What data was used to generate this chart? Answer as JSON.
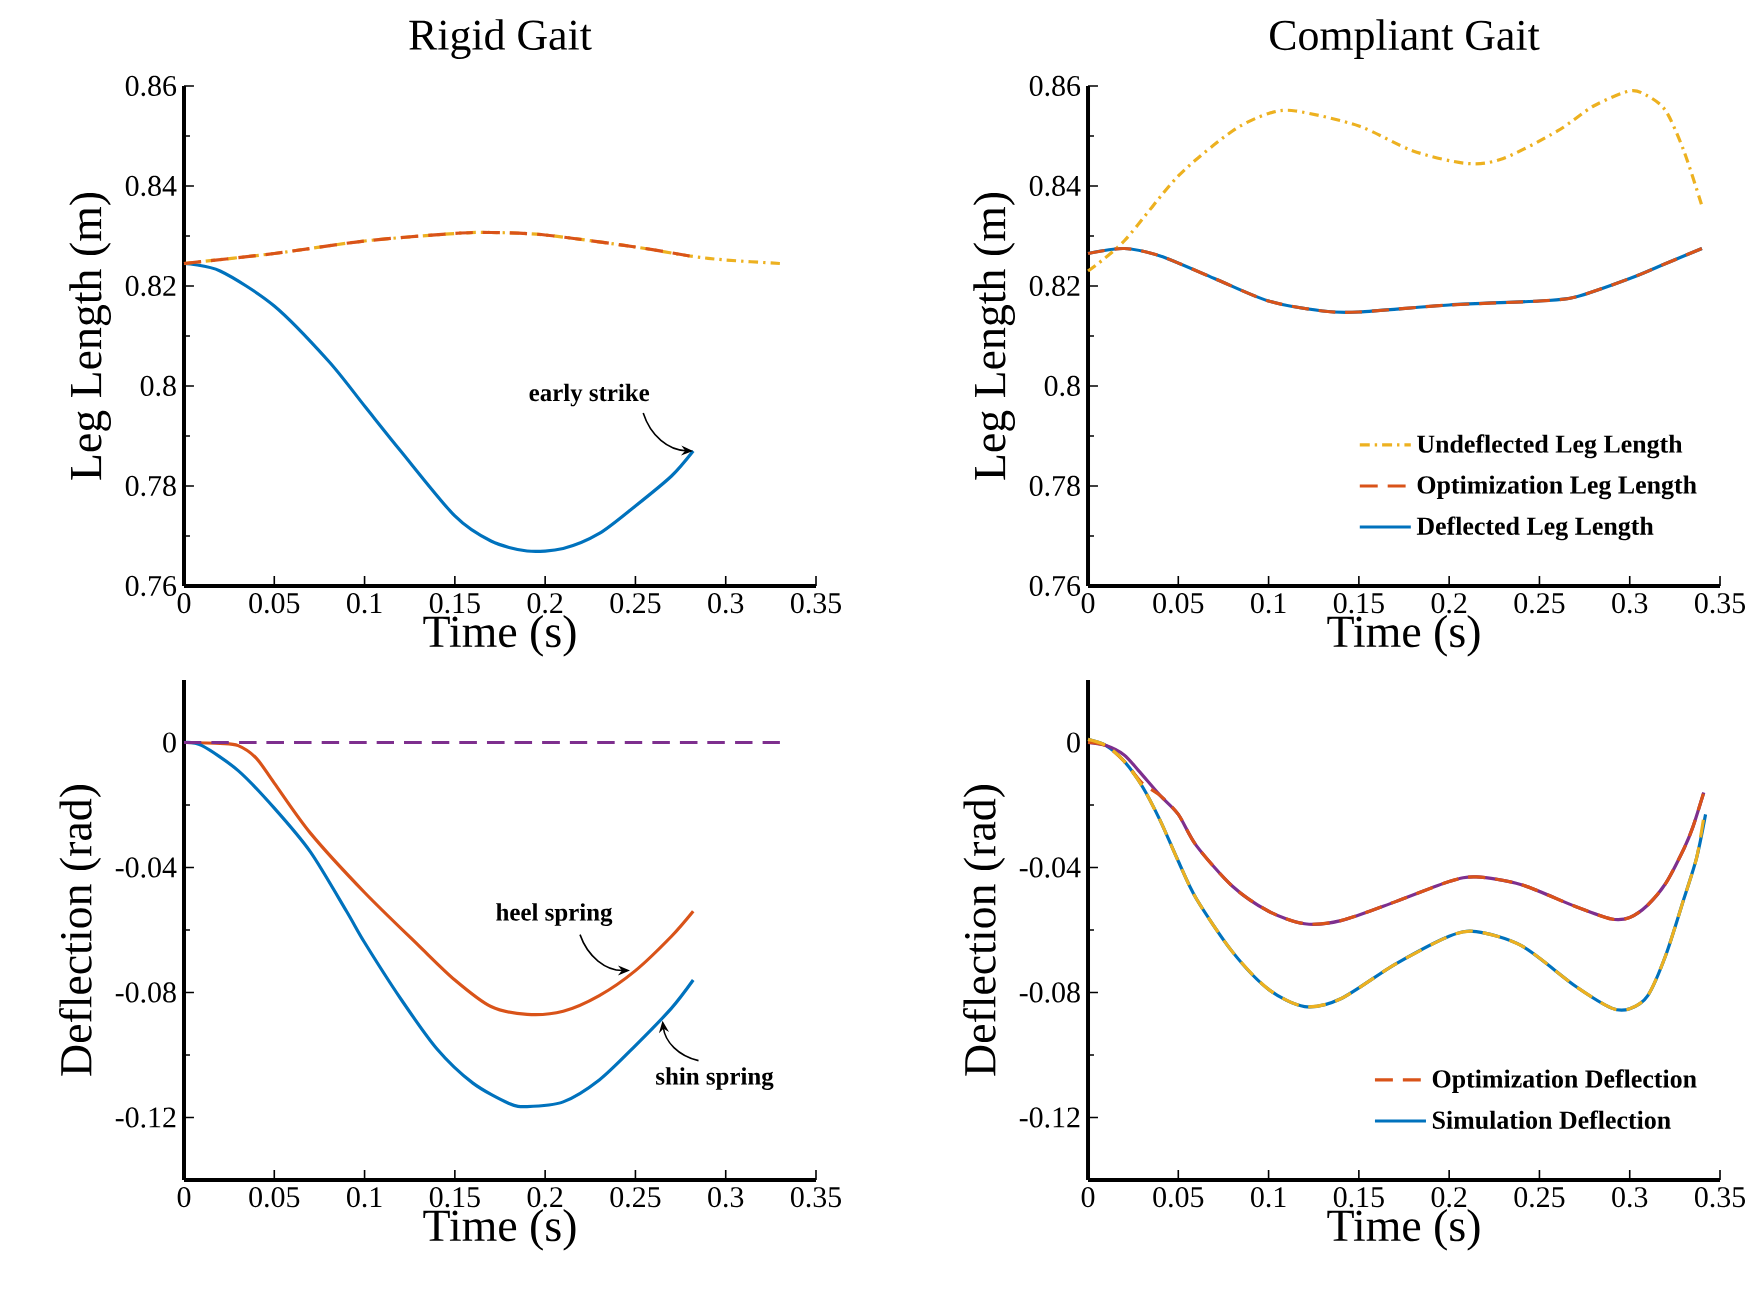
{
  "chart_data": [
    {
      "type": "line",
      "title": "Rigid Gait",
      "xlabel": "Time (s)",
      "ylabel": "Leg Length (m)",
      "xlim": [
        0,
        0.35
      ],
      "ylim": [
        0.76,
        0.86
      ],
      "xticks": [
        0,
        0.05,
        0.1,
        0.15,
        0.2,
        0.25,
        0.3,
        0.35
      ],
      "yticks": [
        0.76,
        0.78,
        0.8,
        0.82,
        0.84,
        0.86
      ],
      "series": [
        {
          "color": "#edb120",
          "line_style": "dashdot",
          "x": [
            0,
            0.05,
            0.1,
            0.15,
            0.17,
            0.2,
            0.25,
            0.28,
            0.3,
            0.33
          ],
          "values": [
            0.8245,
            0.8265,
            0.829,
            0.8305,
            0.8307,
            0.8302,
            0.8278,
            0.826,
            0.8252,
            0.8245
          ]
        },
        {
          "color": "#d95319",
          "line_style": "dashed",
          "x": [
            0,
            0.05,
            0.1,
            0.15,
            0.17,
            0.2,
            0.25,
            0.28
          ],
          "values": [
            0.8245,
            0.8265,
            0.829,
            0.8305,
            0.8307,
            0.8302,
            0.8278,
            0.826
          ]
        },
        {
          "color": "#0072bd",
          "line_style": "solid",
          "x": [
            0,
            0.02,
            0.05,
            0.08,
            0.1,
            0.12,
            0.15,
            0.17,
            0.19,
            0.21,
            0.23,
            0.25,
            0.27,
            0.282
          ],
          "values": [
            0.8245,
            0.823,
            0.816,
            0.805,
            0.796,
            0.787,
            0.774,
            0.769,
            0.767,
            0.7675,
            0.7705,
            0.776,
            0.782,
            0.787
          ]
        }
      ],
      "annotations": [
        {
          "text": "early strike",
          "x": 0.282,
          "y": 0.787
        }
      ]
    },
    {
      "type": "line",
      "title": "Compliant Gait",
      "xlabel": "Time (s)",
      "ylabel": "Leg Length (m)",
      "xlim": [
        0,
        0.35
      ],
      "ylim": [
        0.76,
        0.86
      ],
      "xticks": [
        0,
        0.05,
        0.1,
        0.15,
        0.2,
        0.25,
        0.3,
        0.35
      ],
      "yticks": [
        0.76,
        0.78,
        0.8,
        0.82,
        0.84,
        0.86
      ],
      "legend": "bottom right",
      "series": [
        {
          "name": "Undeflected Leg Length",
          "color": "#edb120",
          "line_style": "dashdot",
          "x": [
            0,
            0.02,
            0.05,
            0.08,
            0.1,
            0.115,
            0.15,
            0.18,
            0.21,
            0.23,
            0.26,
            0.28,
            0.3,
            0.31,
            0.32,
            0.33,
            0.34
          ],
          "values": [
            0.823,
            0.829,
            0.842,
            0.851,
            0.8545,
            0.855,
            0.852,
            0.847,
            0.8445,
            0.8455,
            0.851,
            0.856,
            0.859,
            0.858,
            0.855,
            0.847,
            0.836
          ]
        },
        {
          "name": "Optimization Leg Length",
          "color": "#d95319",
          "line_style": "dashed",
          "x": [
            0,
            0.02,
            0.04,
            0.07,
            0.1,
            0.13,
            0.15,
            0.2,
            0.25,
            0.27,
            0.3,
            0.32,
            0.34
          ],
          "values": [
            0.8265,
            0.8275,
            0.826,
            0.8215,
            0.817,
            0.815,
            0.8148,
            0.8162,
            0.817,
            0.8178,
            0.8215,
            0.8245,
            0.8275
          ]
        },
        {
          "name": "Deflected Leg Length",
          "color": "#0072bd",
          "line_style": "solid",
          "x": [
            0,
            0.02,
            0.04,
            0.07,
            0.1,
            0.13,
            0.15,
            0.2,
            0.25,
            0.27,
            0.3,
            0.32,
            0.34
          ],
          "values": [
            0.8265,
            0.8275,
            0.826,
            0.8215,
            0.817,
            0.815,
            0.8148,
            0.8162,
            0.817,
            0.8178,
            0.8215,
            0.8245,
            0.8275
          ]
        }
      ]
    },
    {
      "type": "line",
      "xlabel": "Time (s)",
      "ylabel": "Deflection (rad)",
      "xlim": [
        0,
        0.35
      ],
      "ylim": [
        -0.14,
        0.02
      ],
      "xticks": [
        0,
        0.05,
        0.1,
        0.15,
        0.2,
        0.25,
        0.3,
        0.35
      ],
      "yticks": [
        -0.12,
        -0.08,
        -0.04,
        0
      ],
      "series": [
        {
          "color": "#7e2f8e",
          "line_style": "dashed",
          "x": [
            0,
            0.33
          ],
          "values": [
            0,
            0
          ]
        },
        {
          "color": "#d95319",
          "line_style": "solid",
          "x": [
            0,
            0.02,
            0.03,
            0.04,
            0.05,
            0.07,
            0.1,
            0.13,
            0.15,
            0.17,
            0.19,
            0.21,
            0.23,
            0.25,
            0.27,
            0.282
          ],
          "values": [
            0,
            -0.0003,
            -0.001,
            -0.005,
            -0.013,
            -0.029,
            -0.048,
            -0.065,
            -0.076,
            -0.0845,
            -0.087,
            -0.086,
            -0.081,
            -0.073,
            -0.062,
            -0.054
          ]
        },
        {
          "color": "#0072bd",
          "line_style": "solid",
          "x": [
            0,
            0.01,
            0.03,
            0.05,
            0.07,
            0.09,
            0.1,
            0.12,
            0.14,
            0.16,
            0.18,
            0.19,
            0.21,
            0.23,
            0.25,
            0.27,
            0.282
          ],
          "values": [
            0,
            -0.001,
            -0.009,
            -0.021,
            -0.035,
            -0.054,
            -0.064,
            -0.082,
            -0.098,
            -0.109,
            -0.1155,
            -0.1165,
            -0.115,
            -0.108,
            -0.097,
            -0.085,
            -0.076
          ]
        }
      ],
      "annotations": [
        {
          "text": "heel spring",
          "x": 0.247,
          "y": -0.073
        },
        {
          "text": "shin spring",
          "x": 0.265,
          "y": -0.089
        }
      ]
    },
    {
      "type": "line",
      "xlabel": "Time (s)",
      "ylabel": "Deflection (rad)",
      "xlim": [
        0,
        0.35
      ],
      "ylim": [
        -0.14,
        0.02
      ],
      "xticks": [
        0,
        0.05,
        0.1,
        0.15,
        0.2,
        0.25,
        0.3,
        0.35
      ],
      "yticks": [
        -0.12,
        -0.08,
        -0.04,
        0
      ],
      "legend": "bottom right",
      "series": [
        {
          "name": "Optimization Deflection",
          "color": "#d95319",
          "line_style": "dashed",
          "x": [
            0,
            0.01,
            0.02,
            0.03,
            0.04,
            0.05,
            0.06,
            0.08,
            0.1,
            0.12,
            0.14,
            0.17,
            0.2,
            0.215,
            0.24,
            0.27,
            0.29,
            0.3,
            0.31,
            0.32,
            0.33,
            0.335,
            0.341
          ],
          "values": [
            0,
            -0.001,
            -0.006,
            -0.013,
            -0.017,
            -0.023,
            -0.033,
            -0.046,
            -0.054,
            -0.058,
            -0.057,
            -0.051,
            -0.0445,
            -0.043,
            -0.0455,
            -0.0525,
            -0.0565,
            -0.056,
            -0.052,
            -0.045,
            -0.034,
            -0.027,
            -0.016
          ]
        },
        {
          "name": "Simulation Deflection",
          "color": "#0072bd",
          "line_style": "solid",
          "x": [
            0,
            0.01,
            0.02,
            0.03,
            0.04,
            0.05,
            0.06,
            0.08,
            0.1,
            0.12,
            0.14,
            0.17,
            0.2,
            0.215,
            0.24,
            0.27,
            0.29,
            0.3,
            0.31,
            0.32,
            0.33,
            0.337,
            0.342
          ],
          "values": [
            0.001,
            -0.001,
            -0.006,
            -0.014,
            -0.025,
            -0.038,
            -0.05,
            -0.067,
            -0.079,
            -0.0845,
            -0.082,
            -0.071,
            -0.062,
            -0.0605,
            -0.065,
            -0.078,
            -0.085,
            -0.0852,
            -0.081,
            -0.068,
            -0.05,
            -0.037,
            -0.023
          ]
        },
        {
          "color": "#7e2f8e",
          "line_style": "solid",
          "x": [
            0,
            0.01,
            0.02,
            0.028,
            0.04,
            0.05,
            0.06,
            0.08,
            0.1,
            0.12,
            0.14,
            0.17,
            0.2,
            0.215,
            0.24,
            0.27,
            0.29,
            0.3,
            0.31,
            0.32,
            0.33,
            0.335,
            0.341
          ],
          "values": [
            0,
            -0.001,
            -0.004,
            -0.009,
            -0.017,
            -0.023,
            -0.033,
            -0.046,
            -0.054,
            -0.058,
            -0.057,
            -0.051,
            -0.0445,
            -0.043,
            -0.0455,
            -0.0525,
            -0.0565,
            -0.056,
            -0.052,
            -0.045,
            -0.034,
            -0.027,
            -0.016
          ]
        },
        {
          "color": "#edb120",
          "line_style": "dashed",
          "x": [
            0,
            0.01,
            0.02,
            0.03,
            0.04,
            0.05,
            0.06,
            0.08,
            0.1,
            0.12,
            0.14,
            0.17,
            0.2,
            0.215,
            0.24,
            0.27,
            0.29,
            0.3,
            0.31,
            0.32,
            0.33,
            0.337,
            0.341
          ],
          "values": [
            0.001,
            -0.001,
            -0.006,
            -0.014,
            -0.025,
            -0.038,
            -0.05,
            -0.067,
            -0.079,
            -0.0845,
            -0.082,
            -0.071,
            -0.062,
            -0.0605,
            -0.065,
            -0.078,
            -0.085,
            -0.0852,
            -0.081,
            -0.068,
            -0.05,
            -0.037,
            -0.024
          ]
        }
      ]
    }
  ]
}
